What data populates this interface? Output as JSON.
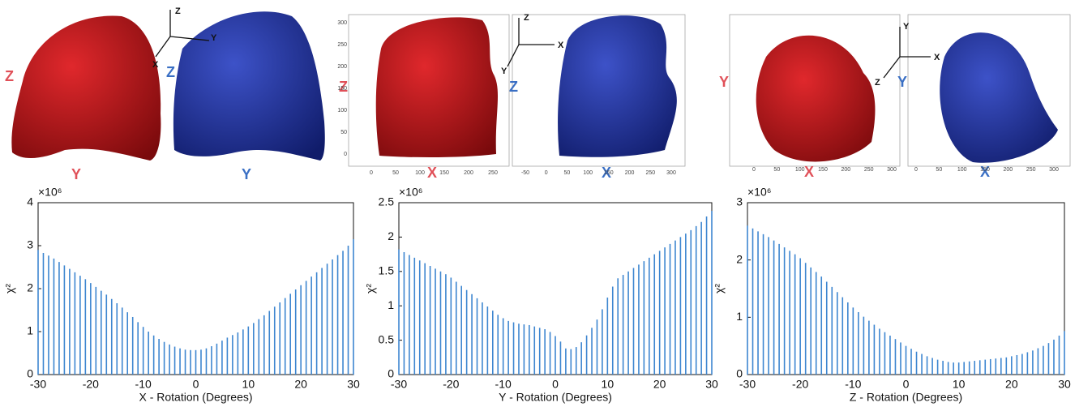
{
  "chart_data": [
    {
      "type": "stem",
      "multiplier": "×10⁶",
      "xlabel": "X - Rotation (Degrees)",
      "ylabel": "χ²",
      "color": "#3d86d0",
      "x": [
        -30,
        -29,
        -28,
        -27,
        -26,
        -25,
        -24,
        -23,
        -22,
        -21,
        -20,
        -19,
        -18,
        -17,
        -16,
        -15,
        -14,
        -13,
        -12,
        -11,
        -10,
        -9,
        -8,
        -7,
        -6,
        -5,
        -4,
        -3,
        -2,
        -1,
        0,
        1,
        2,
        3,
        4,
        5,
        6,
        7,
        8,
        9,
        10,
        11,
        12,
        13,
        14,
        15,
        16,
        17,
        18,
        19,
        20,
        21,
        22,
        23,
        24,
        25,
        26,
        27,
        28,
        29,
        30
      ],
      "values": [
        2.9,
        2.83,
        2.77,
        2.7,
        2.62,
        2.54,
        2.46,
        2.38,
        2.3,
        2.22,
        2.13,
        2.04,
        1.95,
        1.86,
        1.76,
        1.66,
        1.56,
        1.45,
        1.34,
        1.22,
        1.11,
        1.0,
        0.91,
        0.83,
        0.76,
        0.7,
        0.65,
        0.61,
        0.58,
        0.57,
        0.57,
        0.58,
        0.61,
        0.66,
        0.72,
        0.79,
        0.86,
        0.92,
        0.98,
        1.05,
        1.12,
        1.2,
        1.29,
        1.38,
        1.48,
        1.58,
        1.68,
        1.78,
        1.88,
        1.98,
        2.08,
        2.18,
        2.28,
        2.38,
        2.48,
        2.58,
        2.68,
        2.78,
        2.88,
        3.0,
        3.15
      ],
      "xlim": [
        -30,
        30
      ],
      "xticks": [
        -30,
        -20,
        -10,
        0,
        10,
        20,
        30
      ],
      "ylim": [
        0,
        4
      ],
      "yticks": [
        0,
        1,
        2,
        3,
        4
      ]
    },
    {
      "type": "stem",
      "multiplier": "×10⁶",
      "xlabel": "Y - Rotation (Degrees)",
      "ylabel": "χ²",
      "color": "#3d86d0",
      "x": [
        -30,
        -29,
        -28,
        -27,
        -26,
        -25,
        -24,
        -23,
        -22,
        -21,
        -20,
        -19,
        -18,
        -17,
        -16,
        -15,
        -14,
        -13,
        -12,
        -11,
        -10,
        -9,
        -8,
        -7,
        -6,
        -5,
        -4,
        -3,
        -2,
        -1,
        0,
        1,
        2,
        3,
        4,
        5,
        6,
        7,
        8,
        9,
        10,
        11,
        12,
        13,
        14,
        15,
        16,
        17,
        18,
        19,
        20,
        21,
        22,
        23,
        24,
        25,
        26,
        27,
        28,
        29,
        30
      ],
      "values": [
        1.82,
        1.78,
        1.74,
        1.7,
        1.66,
        1.62,
        1.58,
        1.54,
        1.5,
        1.46,
        1.41,
        1.35,
        1.29,
        1.23,
        1.17,
        1.11,
        1.05,
        0.99,
        0.93,
        0.87,
        0.82,
        0.78,
        0.76,
        0.74,
        0.73,
        0.72,
        0.7,
        0.68,
        0.66,
        0.62,
        0.56,
        0.48,
        0.38,
        0.37,
        0.4,
        0.47,
        0.57,
        0.68,
        0.8,
        0.95,
        1.12,
        1.28,
        1.4,
        1.45,
        1.5,
        1.55,
        1.6,
        1.65,
        1.7,
        1.75,
        1.8,
        1.85,
        1.9,
        1.95,
        2.0,
        2.05,
        2.1,
        2.16,
        2.22,
        2.3,
        2.38
      ],
      "xlim": [
        -30,
        30
      ],
      "xticks": [
        -30,
        -20,
        -10,
        0,
        10,
        20,
        30
      ],
      "ylim": [
        0,
        2.5
      ],
      "yticks": [
        0,
        0.5,
        1,
        1.5,
        2,
        2.5
      ]
    },
    {
      "type": "stem",
      "multiplier": "×10⁶",
      "xlabel": "Z - Rotation (Degrees)",
      "ylabel": "χ²",
      "color": "#3d86d0",
      "x": [
        -30,
        -29,
        -28,
        -27,
        -26,
        -25,
        -24,
        -23,
        -22,
        -21,
        -20,
        -19,
        -18,
        -17,
        -16,
        -15,
        -14,
        -13,
        -12,
        -11,
        -10,
        -9,
        -8,
        -7,
        -6,
        -5,
        -4,
        -3,
        -2,
        -1,
        0,
        1,
        2,
        3,
        4,
        5,
        6,
        7,
        8,
        9,
        10,
        11,
        12,
        13,
        14,
        15,
        16,
        17,
        18,
        19,
        20,
        21,
        22,
        23,
        24,
        25,
        26,
        27,
        28,
        29,
        30
      ],
      "values": [
        2.6,
        2.55,
        2.5,
        2.45,
        2.4,
        2.34,
        2.28,
        2.22,
        2.16,
        2.1,
        2.03,
        1.95,
        1.87,
        1.79,
        1.71,
        1.62,
        1.53,
        1.44,
        1.35,
        1.26,
        1.17,
        1.09,
        1.01,
        0.94,
        0.87,
        0.8,
        0.74,
        0.68,
        0.62,
        0.56,
        0.5,
        0.45,
        0.4,
        0.36,
        0.32,
        0.29,
        0.26,
        0.24,
        0.22,
        0.21,
        0.21,
        0.22,
        0.23,
        0.24,
        0.25,
        0.26,
        0.27,
        0.28,
        0.29,
        0.3,
        0.32,
        0.34,
        0.36,
        0.39,
        0.42,
        0.46,
        0.5,
        0.55,
        0.61,
        0.68,
        0.76
      ],
      "xlim": [
        -30,
        30
      ],
      "xticks": [
        -30,
        -20,
        -10,
        0,
        10,
        20,
        30
      ],
      "ylim": [
        0,
        3
      ],
      "yticks": [
        0,
        1,
        2,
        3
      ]
    }
  ],
  "renders": [
    {
      "left_labels": [
        "Z",
        "Y"
      ],
      "triad": [
        "Z",
        "Y",
        "X"
      ],
      "right_labels": [
        "Z",
        "Y"
      ]
    },
    {
      "left_labels": [
        "Z",
        "X"
      ],
      "triad": [
        "Z",
        "X",
        "Y"
      ],
      "right_labels": [
        "Z",
        "X"
      ],
      "left_yticks": [
        0,
        50,
        100,
        150,
        200,
        250,
        300
      ],
      "left_xticks": [
        0,
        50,
        100,
        150,
        200,
        250
      ],
      "right_xticks": [
        -50,
        0,
        50,
        100,
        150,
        200,
        250,
        300
      ]
    },
    {
      "left_labels": [
        "Y",
        "X"
      ],
      "triad": [
        "Y",
        "X",
        "Z"
      ],
      "right_labels": [
        "Y",
        "X"
      ],
      "left_xticks": [
        0,
        50,
        100,
        150,
        200,
        250,
        300
      ],
      "right_xticks": [
        0,
        50,
        100,
        150,
        200,
        250,
        300
      ]
    }
  ]
}
